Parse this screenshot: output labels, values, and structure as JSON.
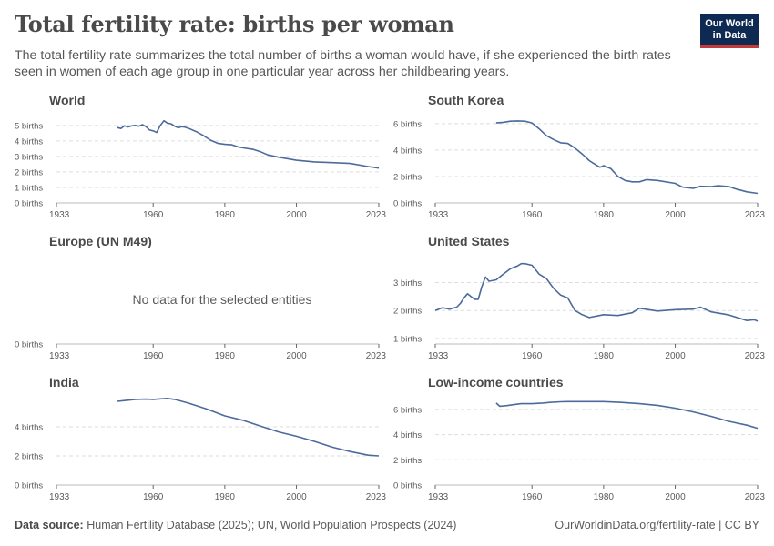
{
  "header": {
    "title": "Total fertility rate: births per woman",
    "subtitle": "The total fertility rate summarizes the total number of births a woman would have, if she experienced the birth rates seen in women of each age group in one particular year across her childbearing years.",
    "logo_line1": "Our World",
    "logo_line2": "in Data"
  },
  "footer": {
    "source_label": "Data source:",
    "source_text": "Human Fertility Database (2025); UN, World Population Prospects (2024)",
    "url_text": "OurWorldinData.org/fertility-rate | CC BY"
  },
  "colors": {
    "line": "#4c6a9c",
    "grid": "#dddddd",
    "axis": "#666666",
    "text": "#5b5b5b"
  },
  "chart_data": [
    {
      "type": "line",
      "title": "World",
      "xlim": [
        1933,
        2023
      ],
      "x_ticks": [
        1933,
        1960,
        1980,
        2000,
        2023
      ],
      "y_ticks": [
        0,
        1,
        2,
        3,
        4,
        5
      ],
      "ylim": [
        0,
        5.4
      ],
      "unit": "births",
      "series": [
        {
          "x": [
            1950,
            1951,
            1952,
            1953,
            1954,
            1955,
            1956,
            1957,
            1958,
            1959,
            1960,
            1961,
            1962,
            1963,
            1964,
            1965,
            1966,
            1967,
            1968,
            1969,
            1970,
            1972,
            1974,
            1976,
            1978,
            1980,
            1982,
            1984,
            1986,
            1988,
            1990,
            1992,
            1995,
            2000,
            2005,
            2010,
            2015,
            2020,
            2023
          ],
          "y": [
            4.86,
            4.8,
            4.98,
            4.9,
            4.97,
            5.0,
            4.95,
            5.05,
            4.92,
            4.7,
            4.65,
            4.55,
            5.0,
            5.3,
            5.15,
            5.1,
            4.95,
            4.85,
            4.92,
            4.88,
            4.8,
            4.6,
            4.35,
            4.05,
            3.85,
            3.78,
            3.75,
            3.6,
            3.52,
            3.45,
            3.3,
            3.1,
            2.95,
            2.75,
            2.65,
            2.6,
            2.55,
            2.35,
            2.25
          ]
        }
      ]
    },
    {
      "type": "line",
      "title": "South Korea",
      "xlim": [
        1933,
        2023
      ],
      "x_ticks": [
        1933,
        1960,
        1980,
        2000,
        2023
      ],
      "y_ticks": [
        0,
        2,
        4,
        6
      ],
      "ylim": [
        0,
        6.4
      ],
      "unit": "births",
      "series": [
        {
          "x": [
            1950,
            1952,
            1954,
            1956,
            1958,
            1960,
            1962,
            1964,
            1966,
            1968,
            1970,
            1972,
            1974,
            1976,
            1978,
            1979,
            1980,
            1982,
            1984,
            1986,
            1988,
            1990,
            1992,
            1995,
            2000,
            2002,
            2005,
            2007,
            2010,
            2012,
            2015,
            2017,
            2020,
            2023
          ],
          "y": [
            6.05,
            6.1,
            6.18,
            6.2,
            6.18,
            6.05,
            5.6,
            5.1,
            4.8,
            4.55,
            4.5,
            4.15,
            3.7,
            3.2,
            2.85,
            2.7,
            2.82,
            2.6,
            2.0,
            1.7,
            1.6,
            1.6,
            1.76,
            1.7,
            1.48,
            1.2,
            1.1,
            1.26,
            1.23,
            1.3,
            1.24,
            1.05,
            0.84,
            0.72
          ]
        }
      ]
    },
    {
      "type": "line",
      "title": "Europe (UN M49)",
      "xlim": [
        1933,
        2023
      ],
      "x_ticks": [
        1933,
        1960,
        1980,
        2000,
        2023
      ],
      "y_ticks": [
        0
      ],
      "ylim": [
        0,
        1
      ],
      "unit": "births",
      "no_data": "No data for the selected entities",
      "series": []
    },
    {
      "type": "line",
      "title": "United States",
      "xlim": [
        1933,
        2023
      ],
      "x_ticks": [
        1933,
        1960,
        1980,
        2000,
        2023
      ],
      "y_ticks": [
        1,
        2,
        3
      ],
      "ylim": [
        0.8,
        3.8
      ],
      "unit": "births",
      "series": [
        {
          "x": [
            1933,
            1935,
            1937,
            1939,
            1940,
            1941,
            1942,
            1943,
            1944,
            1945,
            1946,
            1947,
            1948,
            1950,
            1952,
            1954,
            1956,
            1957,
            1958,
            1960,
            1962,
            1964,
            1966,
            1968,
            1970,
            1972,
            1974,
            1976,
            1978,
            1980,
            1984,
            1988,
            1990,
            1995,
            2000,
            2005,
            2007,
            2010,
            2015,
            2020,
            2022,
            2023
          ],
          "y": [
            2.0,
            2.1,
            2.05,
            2.12,
            2.25,
            2.45,
            2.6,
            2.5,
            2.4,
            2.4,
            2.85,
            3.2,
            3.05,
            3.1,
            3.3,
            3.5,
            3.6,
            3.68,
            3.68,
            3.62,
            3.3,
            3.15,
            2.8,
            2.55,
            2.45,
            2.0,
            1.85,
            1.75,
            1.8,
            1.85,
            1.82,
            1.92,
            2.08,
            1.98,
            2.03,
            2.05,
            2.12,
            1.95,
            1.84,
            1.64,
            1.67,
            1.62
          ]
        }
      ]
    },
    {
      "type": "line",
      "title": "India",
      "xlim": [
        1933,
        2023
      ],
      "x_ticks": [
        1933,
        1960,
        1980,
        2000,
        2023
      ],
      "y_ticks": [
        0,
        2,
        4
      ],
      "ylim": [
        0,
        6.0
      ],
      "unit": "births",
      "series": [
        {
          "x": [
            1950,
            1952,
            1955,
            1958,
            1960,
            1962,
            1964,
            1966,
            1968,
            1970,
            1975,
            1980,
            1985,
            1990,
            1995,
            2000,
            2005,
            2010,
            2015,
            2020,
            2023
          ],
          "y": [
            5.75,
            5.8,
            5.88,
            5.9,
            5.88,
            5.92,
            5.95,
            5.88,
            5.75,
            5.62,
            5.22,
            4.75,
            4.45,
            4.05,
            3.65,
            3.35,
            3.0,
            2.6,
            2.3,
            2.05,
            2.0
          ]
        }
      ]
    },
    {
      "type": "line",
      "title": "Low-income countries",
      "xlim": [
        1933,
        2023
      ],
      "x_ticks": [
        1933,
        1960,
        1980,
        2000,
        2023
      ],
      "y_ticks": [
        0,
        2,
        4,
        6
      ],
      "ylim": [
        0,
        7.0
      ],
      "unit": "births",
      "series": [
        {
          "x": [
            1950,
            1951,
            1953,
            1955,
            1957,
            1960,
            1963,
            1965,
            1968,
            1970,
            1972,
            1975,
            1980,
            1985,
            1990,
            1995,
            2000,
            2005,
            2010,
            2015,
            2020,
            2023
          ],
          "y": [
            6.5,
            6.25,
            6.3,
            6.38,
            6.45,
            6.45,
            6.5,
            6.55,
            6.6,
            6.62,
            6.62,
            6.62,
            6.62,
            6.55,
            6.45,
            6.32,
            6.1,
            5.8,
            5.45,
            5.05,
            4.75,
            4.5
          ]
        }
      ]
    }
  ]
}
